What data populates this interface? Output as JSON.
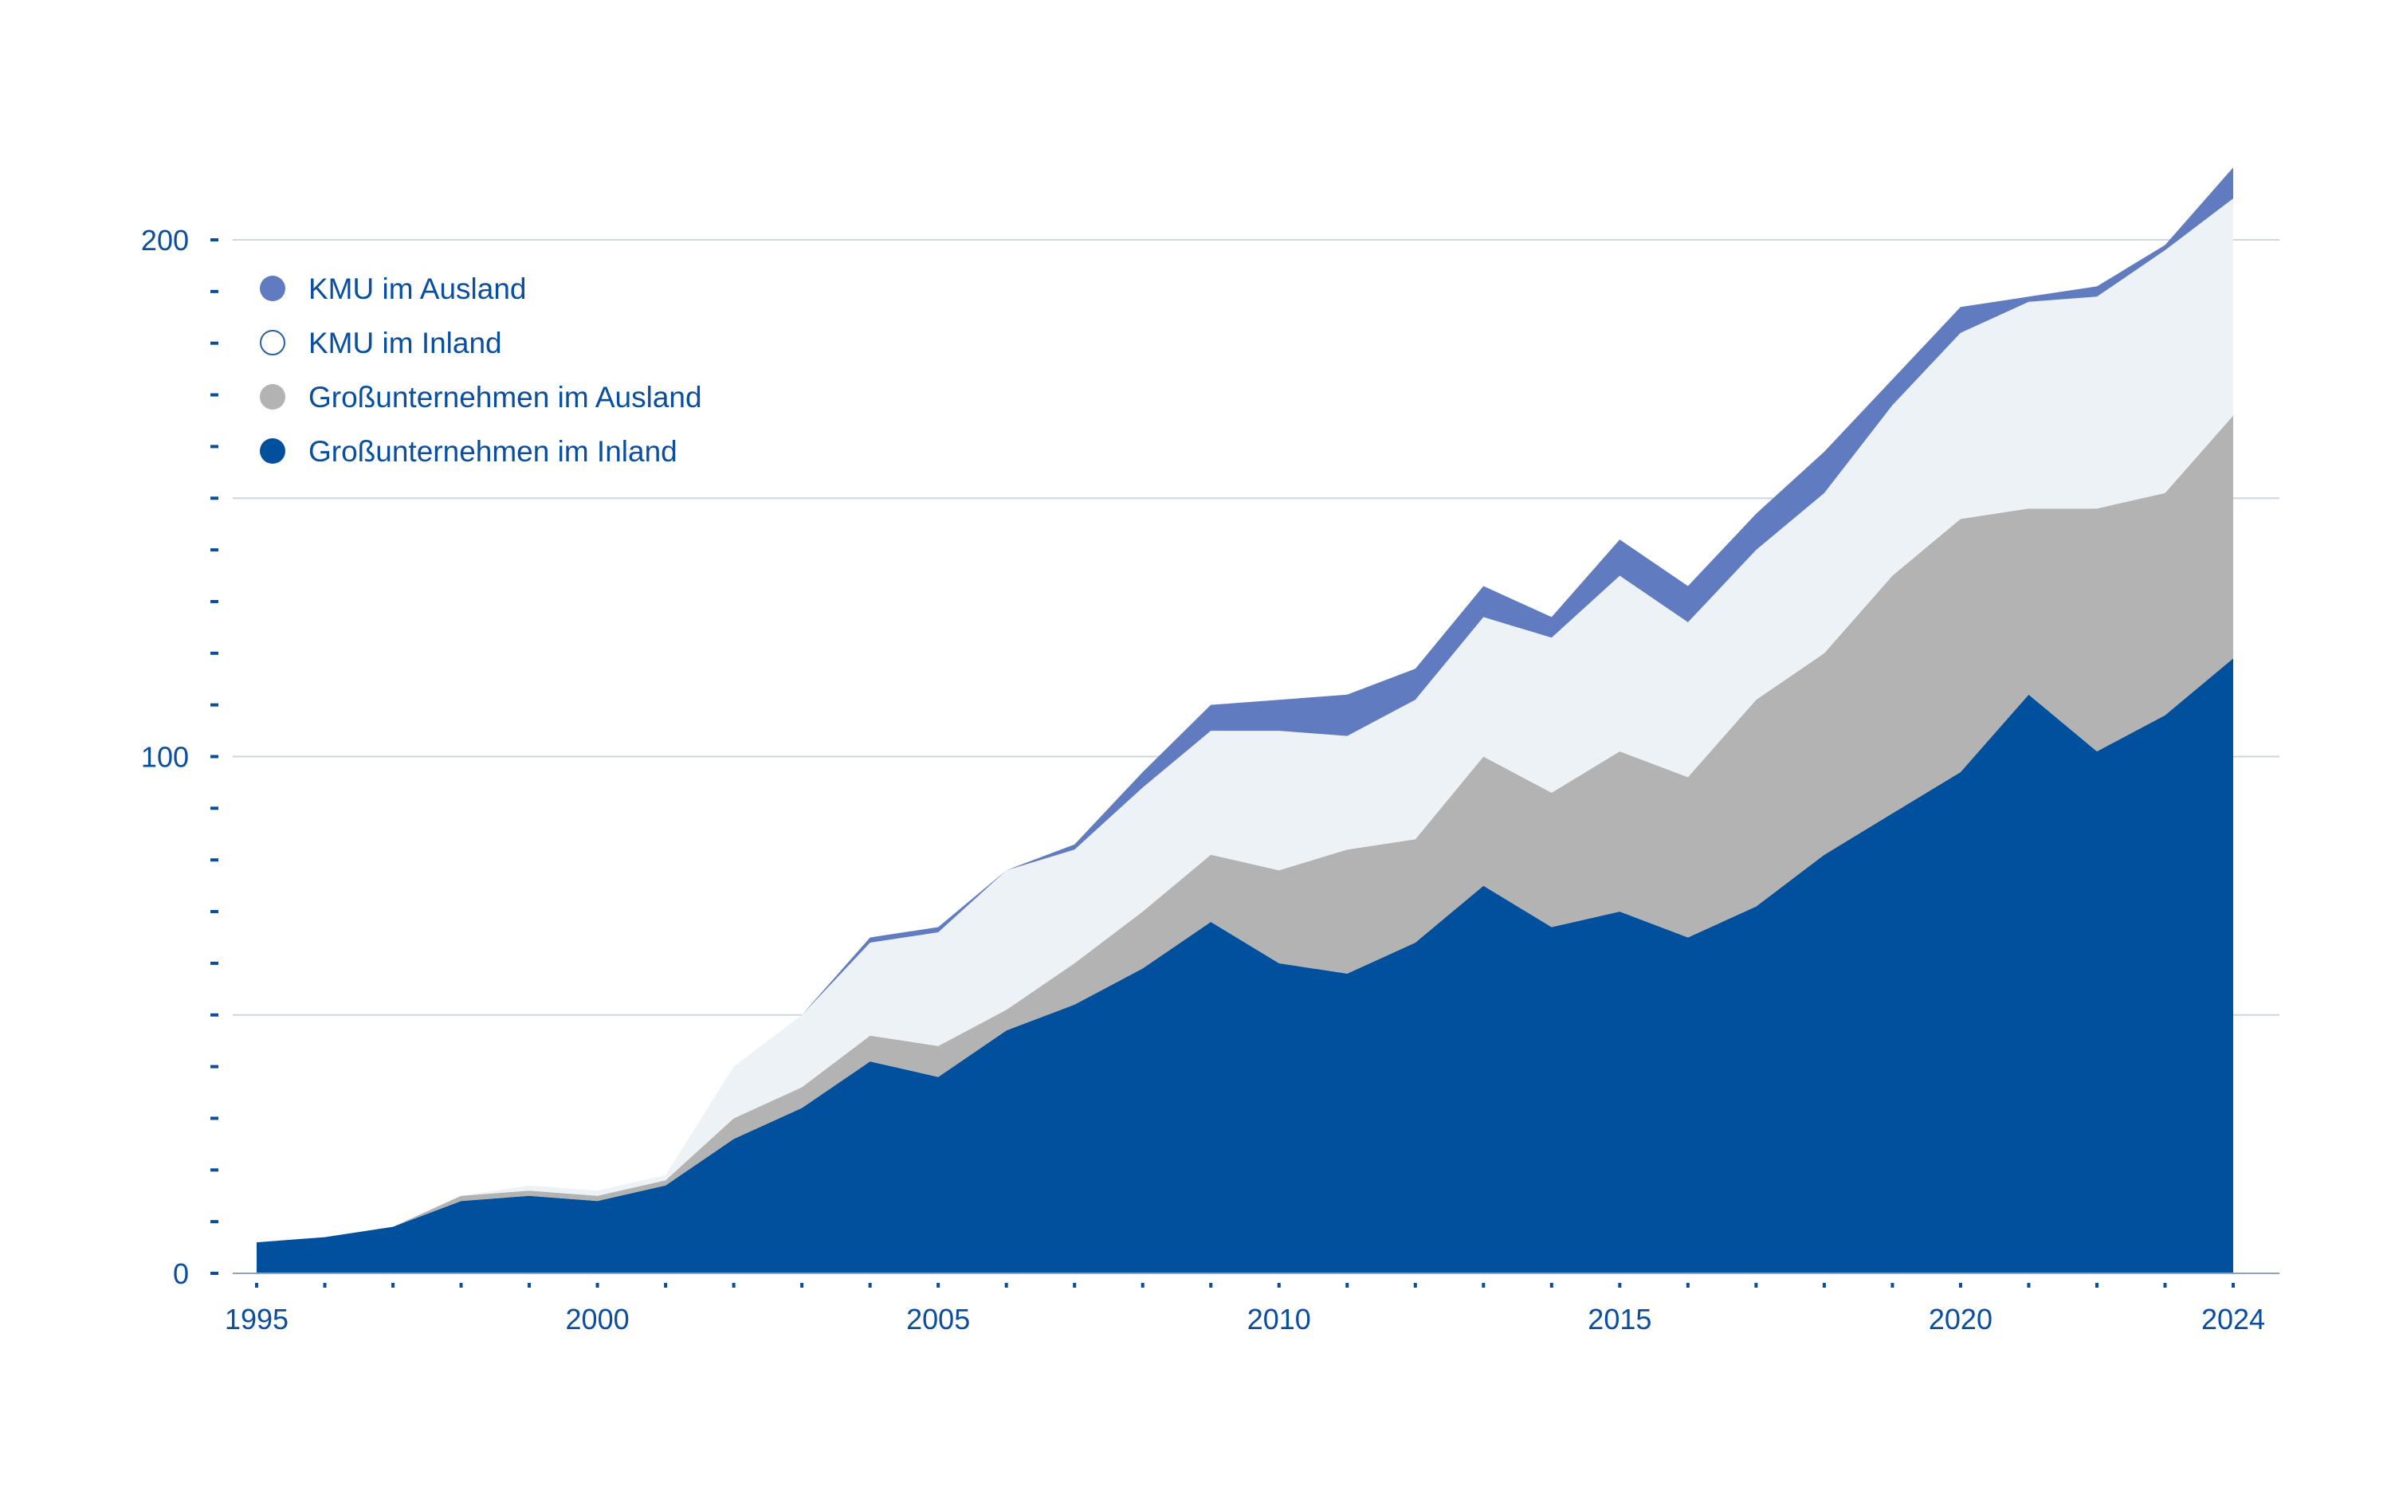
{
  "chart_data": {
    "type": "area",
    "stacked": true,
    "title": "",
    "xlabel": "",
    "ylabel": "",
    "x": [
      1995,
      1996,
      1997,
      1998,
      1999,
      2000,
      2001,
      2002,
      2003,
      2004,
      2005,
      2006,
      2007,
      2008,
      2009,
      2010,
      2011,
      2012,
      2013,
      2014,
      2015,
      2016,
      2017,
      2018,
      2019,
      2020,
      2021,
      2022,
      2023,
      2024
    ],
    "xlim": [
      1995,
      2024
    ],
    "ylim": [
      0,
      200
    ],
    "x_ticks": [
      1995,
      2000,
      2005,
      2010,
      2015,
      2020,
      2024
    ],
    "y_ticks": [
      0,
      100,
      200
    ],
    "grid_values": [
      50,
      100,
      150,
      200
    ],
    "grid": true,
    "legend_position": "top-left",
    "series": [
      {
        "name": "Großunternehmen im Inland",
        "color": "#00509e",
        "values": [
          6,
          7,
          9,
          14,
          15,
          14,
          17,
          26,
          32,
          41,
          38,
          47,
          52,
          59,
          68,
          60,
          58,
          64,
          75,
          67,
          70,
          65,
          71,
          81,
          89,
          97,
          112,
          101,
          108,
          119
        ]
      },
      {
        "name": "Großunternehmen im Ausland",
        "color": "#b3b3b3",
        "values": [
          0,
          0,
          0,
          1,
          1,
          1,
          1,
          4,
          4,
          5,
          6,
          4,
          8,
          11,
          13,
          18,
          24,
          20,
          25,
          26,
          31,
          31,
          40,
          39,
          46,
          49,
          36,
          47,
          43,
          47
        ]
      },
      {
        "name": "KMU im Inland",
        "color": "#edf2f7",
        "values": [
          0,
          0,
          0,
          0,
          1,
          1,
          1,
          10,
          14,
          18,
          22,
          27,
          22,
          24,
          24,
          27,
          22,
          27,
          27,
          30,
          34,
          30,
          29,
          31,
          33,
          36,
          40,
          41,
          47,
          42
        ]
      },
      {
        "name": "KMU im Ausland",
        "color": "#607bbf",
        "values": [
          0,
          0,
          0,
          0,
          0,
          0,
          0,
          0,
          0,
          1,
          1,
          0,
          1,
          3,
          5,
          6,
          8,
          6,
          6,
          4,
          7,
          7,
          7,
          8,
          5,
          5,
          1,
          2,
          1,
          6
        ]
      }
    ],
    "legend": [
      {
        "label": "KMU im Ausland",
        "series": 3,
        "marker": "filled",
        "color": "#607bbf"
      },
      {
        "label": "KMU im Inland",
        "series": 2,
        "marker": "outline",
        "color": "#2a5da8"
      },
      {
        "label": "Großunternehmen im Ausland",
        "series": 1,
        "marker": "filled",
        "color": "#b3b3b3"
      },
      {
        "label": "Großunternehmen im Inland",
        "series": 0,
        "marker": "filled",
        "color": "#00509e"
      }
    ]
  }
}
